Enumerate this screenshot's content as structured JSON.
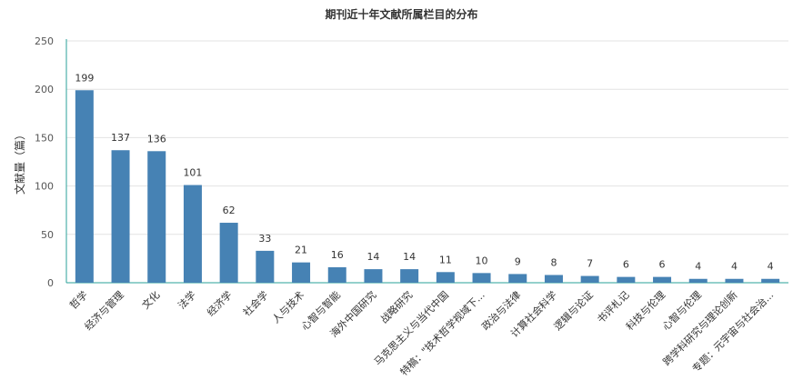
{
  "chart_data": {
    "type": "bar",
    "title": "期刊近十年文献所属栏目的分布",
    "ylabel": "文献量（篇）",
    "xlabel": "",
    "ylim": [
      0,
      250
    ],
    "yticks": [
      0,
      50,
      100,
      150,
      200,
      250
    ],
    "grid": true,
    "bar_color": "#4682b4",
    "categories": [
      "哲学",
      "经济与管理",
      "文化",
      "法学",
      "经济学",
      "社会学",
      "人与技术",
      "心智与智能",
      "海外中国研究",
      "战略研究",
      "马克思主义与当代中国",
      "特稿：\"技术哲学视域下...",
      "政治与法律",
      "计算社会科学",
      "逻辑与论证",
      "书评札记",
      "科技与伦理",
      "心智与伦理",
      "跨学科研究与理论创新",
      "专题：元宇宙与社会治..."
    ],
    "values": [
      199,
      137,
      136,
      101,
      62,
      33,
      21,
      16,
      14,
      14,
      11,
      10,
      9,
      8,
      7,
      6,
      6,
      4,
      4,
      4
    ]
  }
}
